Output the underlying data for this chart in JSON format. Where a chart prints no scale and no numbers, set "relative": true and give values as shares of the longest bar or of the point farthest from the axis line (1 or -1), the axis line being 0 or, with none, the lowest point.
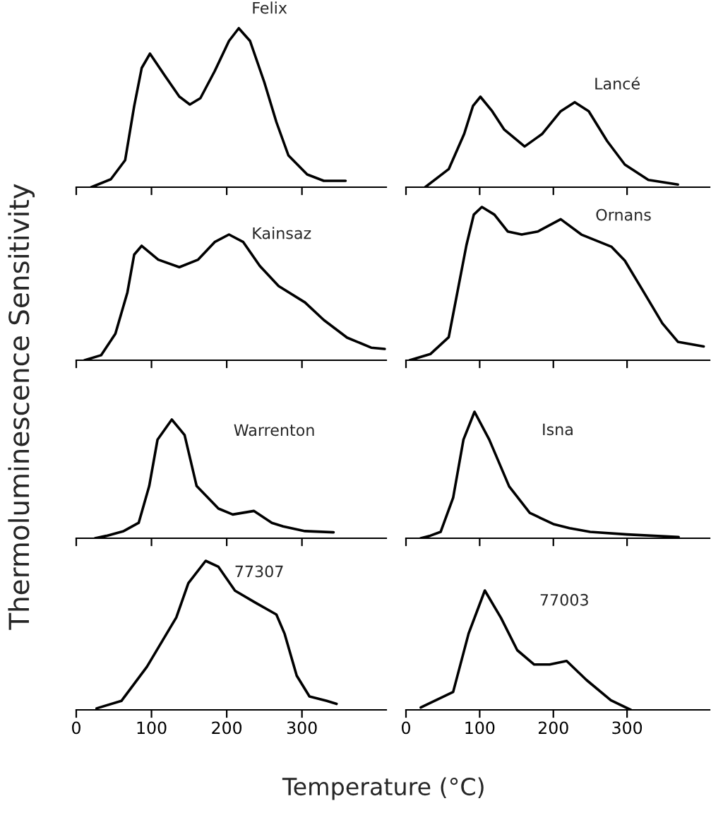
{
  "chart_data": [
    {
      "type": "line",
      "relative": true,
      "xlim": [
        0,
        412
      ],
      "xticks": [
        0,
        100,
        200,
        300
      ],
      "tick_labels": false,
      "ylabel": "Thermoluminescence Sensitivity",
      "grid": false,
      "marker": "none",
      "line_style": "solid",
      "series": [
        {
          "name": "Felix",
          "color": "#000000",
          "x": [
            20,
            46,
            65,
            77,
            87,
            98,
            118,
            137,
            151,
            165,
            184,
            203,
            216,
            231,
            250,
            266,
            282,
            307,
            329,
            358
          ],
          "values": [
            0,
            0.05,
            0.17,
            0.51,
            0.75,
            0.84,
            0.7,
            0.57,
            0.52,
            0.56,
            0.73,
            0.92,
            1.0,
            0.92,
            0.66,
            0.41,
            0.2,
            0.08,
            0.04,
            0.04
          ]
        }
      ]
    },
    {
      "type": "line",
      "relative": true,
      "xlim": [
        0,
        412
      ],
      "xticks": [
        0,
        100,
        200,
        300
      ],
      "tick_labels": false,
      "grid": false,
      "marker": "none",
      "line_style": "solid",
      "series": [
        {
          "name": "Lancé",
          "color": "#000000",
          "x": [
            26,
            58,
            79,
            91,
            101,
            117,
            133,
            161,
            185,
            210,
            229,
            248,
            273,
            297,
            329,
            369
          ],
          "values": [
            0,
            0.2,
            0.59,
            0.9,
            1.0,
            0.84,
            0.64,
            0.45,
            0.59,
            0.84,
            0.94,
            0.84,
            0.51,
            0.25,
            0.08,
            0.03
          ]
        }
      ]
    },
    {
      "type": "line",
      "relative": true,
      "xlim": [
        0,
        412
      ],
      "xticks": [
        0,
        100,
        200,
        300
      ],
      "tick_labels": false,
      "grid": false,
      "marker": "none",
      "line_style": "solid",
      "series": [
        {
          "name": "Kainsaz",
          "color": "#000000",
          "x": [
            11,
            33,
            52,
            68,
            77,
            87,
            109,
            137,
            162,
            184,
            203,
            222,
            244,
            269,
            304,
            329,
            360,
            392,
            410
          ],
          "values": [
            0,
            0.04,
            0.21,
            0.54,
            0.84,
            0.91,
            0.8,
            0.74,
            0.8,
            0.94,
            1.0,
            0.94,
            0.75,
            0.59,
            0.46,
            0.32,
            0.18,
            0.1,
            0.09
          ]
        }
      ]
    },
    {
      "type": "line",
      "relative": true,
      "xlim": [
        0,
        412
      ],
      "xticks": [
        0,
        100,
        200,
        300
      ],
      "tick_labels": false,
      "grid": false,
      "marker": "none",
      "line_style": "solid",
      "series": [
        {
          "name": "Ornans",
          "color": "#000000",
          "x": [
            5,
            33,
            58,
            70,
            82,
            92,
            103,
            120,
            138,
            157,
            179,
            210,
            238,
            279,
            297,
            322,
            348,
            369,
            404
          ],
          "values": [
            0,
            0.04,
            0.15,
            0.45,
            0.75,
            0.95,
            1.0,
            0.95,
            0.84,
            0.82,
            0.84,
            0.92,
            0.82,
            0.74,
            0.65,
            0.45,
            0.24,
            0.12,
            0.09
          ]
        }
      ]
    },
    {
      "type": "line",
      "relative": true,
      "xlim": [
        0,
        412
      ],
      "xticks": [
        0,
        100,
        200,
        300
      ],
      "tick_labels": false,
      "grid": false,
      "marker": "none",
      "line_style": "solid",
      "series": [
        {
          "name": "Warrenton",
          "color": "#000000",
          "x": [
            25,
            40,
            63,
            83,
            97,
            108,
            127,
            144,
            160,
            189,
            208,
            236,
            260,
            275,
            304,
            342
          ],
          "values": [
            0,
            0.02,
            0.06,
            0.13,
            0.44,
            0.83,
            1.0,
            0.87,
            0.44,
            0.25,
            0.2,
            0.23,
            0.13,
            0.1,
            0.06,
            0.05
          ]
        }
      ]
    },
    {
      "type": "line",
      "relative": true,
      "xlim": [
        0,
        412
      ],
      "xticks": [
        0,
        100,
        200,
        300
      ],
      "tick_labels": false,
      "grid": false,
      "marker": "none",
      "line_style": "solid",
      "series": [
        {
          "name": "Isna",
          "color": "#000000",
          "x": [
            20,
            33,
            47,
            64,
            78,
            93,
            113,
            140,
            168,
            201,
            222,
            250,
            300,
            370
          ],
          "values": [
            0,
            0.02,
            0.05,
            0.32,
            0.78,
            1.0,
            0.78,
            0.41,
            0.2,
            0.11,
            0.08,
            0.05,
            0.03,
            0.01
          ]
        }
      ]
    },
    {
      "type": "line",
      "relative": true,
      "xlim": [
        0,
        412
      ],
      "xticks": [
        0,
        100,
        200,
        300
      ],
      "tick_labels": "x",
      "grid": false,
      "marker": "none",
      "line_style": "solid",
      "series": [
        {
          "name": "77307",
          "color": "#000000",
          "x": [
            27,
            60,
            94,
            133,
            149,
            172,
            189,
            211,
            238,
            266,
            277,
            293,
            310,
            333,
            346
          ],
          "values": [
            0.01,
            0.06,
            0.29,
            0.62,
            0.85,
            1.0,
            0.96,
            0.8,
            0.72,
            0.64,
            0.51,
            0.23,
            0.09,
            0.06,
            0.04
          ]
        }
      ]
    },
    {
      "type": "line",
      "relative": true,
      "xlim": [
        0,
        412
      ],
      "xticks": [
        0,
        100,
        200,
        300
      ],
      "tick_labels": "x",
      "xlabel": "Temperature (°C)",
      "grid": false,
      "marker": "none",
      "line_style": "solid",
      "series": [
        {
          "name": "77003",
          "color": "#000000",
          "x": [
            20,
            64,
            85,
            107,
            129,
            151,
            174,
            195,
            218,
            245,
            278,
            305
          ],
          "values": [
            0.02,
            0.15,
            0.64,
            1.0,
            0.77,
            0.5,
            0.38,
            0.38,
            0.41,
            0.25,
            0.08,
            0.0
          ]
        }
      ]
    }
  ]
}
